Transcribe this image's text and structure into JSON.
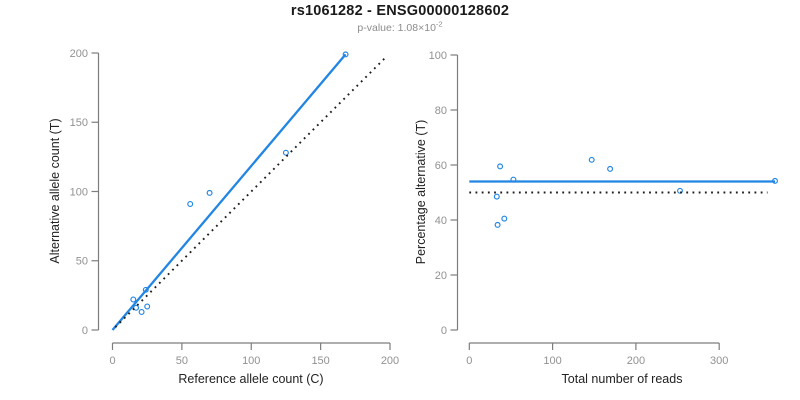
{
  "header": {
    "title": "rs1061282 - ENSG00000128602",
    "subtitle_base": "p-value: 1.08×10",
    "subtitle_exponent": "-2"
  },
  "colors": {
    "accent_blue": "#2185e4",
    "identity_black": "#1c1c1c",
    "axis_line": "#7d7d7d",
    "tick_label": "#919191",
    "title_text": "#1a1a1a",
    "subtitle_text": "#8c8c8c"
  },
  "chart_data": [
    {
      "type": "scatter",
      "xlabel": "Reference allele count (C)",
      "ylabel": "Alternative allele count (T)",
      "xlim": [
        0,
        200
      ],
      "ylim": [
        0,
        200
      ],
      "xticks": [
        0,
        50,
        100,
        150,
        200
      ],
      "yticks": [
        0,
        50,
        100,
        150,
        200
      ],
      "grid": false,
      "legend": null,
      "points": [
        [
          15,
          22
        ],
        [
          17,
          16
        ],
        [
          21,
          13
        ],
        [
          25,
          17
        ],
        [
          24,
          29
        ],
        [
          56,
          91
        ],
        [
          70,
          99
        ],
        [
          125,
          128
        ],
        [
          168,
          199
        ]
      ],
      "lines": [
        {
          "name": "regression-line",
          "style": "solid",
          "color_key": "accent_blue",
          "x1": 0,
          "y1": 0,
          "x2": 168,
          "y2": 199
        },
        {
          "name": "identity-line",
          "style": "dotted",
          "color_key": "identity_black",
          "x1": 2,
          "y1": 2,
          "x2": 197,
          "y2": 197
        }
      ]
    },
    {
      "type": "scatter",
      "xlabel": "Total number of reads",
      "ylabel": "Percentage alternative (T)",
      "xlim": [
        0,
        367
      ],
      "ylim": [
        0,
        100
      ],
      "xticks": [
        0,
        100,
        200,
        300
      ],
      "yticks": [
        0,
        20,
        40,
        60,
        80,
        100
      ],
      "grid": false,
      "legend": null,
      "points": [
        [
          37,
          59.5
        ],
        [
          33,
          48.5
        ],
        [
          34,
          38.2
        ],
        [
          42,
          40.5
        ],
        [
          53,
          54.7
        ],
        [
          147,
          61.9
        ],
        [
          169,
          58.6
        ],
        [
          253,
          50.6
        ],
        [
          367,
          54.2
        ]
      ],
      "lines": [
        {
          "name": "mean-line",
          "style": "solid",
          "color_key": "accent_blue",
          "x1": 0,
          "y1": 54,
          "x2": 367,
          "y2": 54
        },
        {
          "name": "reference-line",
          "style": "dotted",
          "color_key": "identity_black",
          "x1": 0,
          "y1": 50,
          "x2": 358,
          "y2": 50
        }
      ]
    }
  ]
}
